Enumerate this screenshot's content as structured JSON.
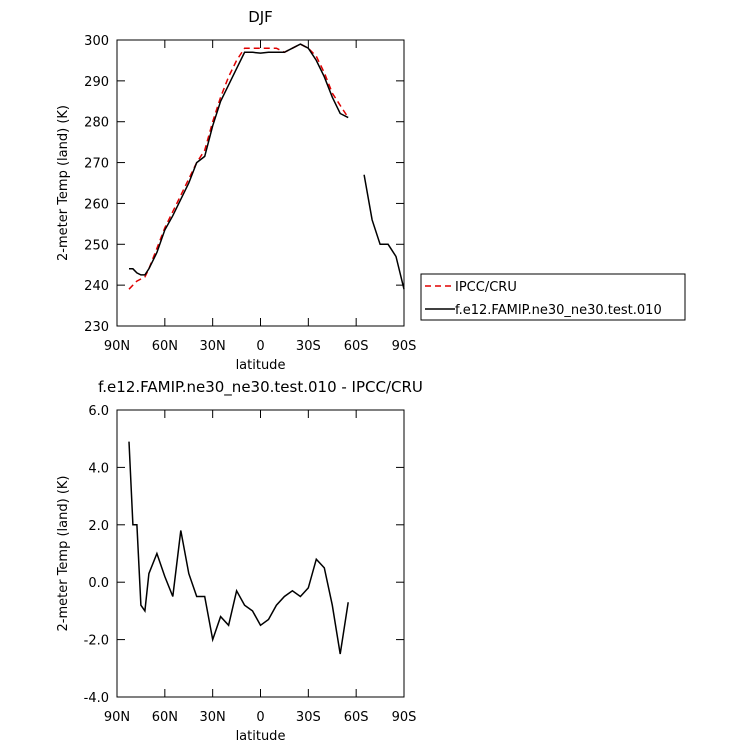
{
  "chart_data": [
    {
      "type": "line",
      "title": "DJF",
      "xlabel": "latitude",
      "ylabel": "2-meter Temp (land) (K)",
      "x": [
        82.5,
        80,
        77.5,
        75,
        72.5,
        70,
        65,
        60,
        55,
        50,
        45,
        40,
        35,
        30,
        25,
        20,
        15,
        10,
        5,
        0,
        -5,
        -10,
        -15,
        -20,
        -25,
        -30,
        -35,
        -40,
        -45,
        -50,
        -55,
        -60,
        -65,
        -70,
        -75,
        -80,
        -85,
        -90
      ],
      "series": [
        {
          "name": "IPCC/CRU",
          "color": "#e00000",
          "linestyle": "dashed",
          "values": [
            239,
            240,
            241,
            241.5,
            242,
            244,
            249,
            254,
            258,
            262,
            266,
            270,
            273,
            280,
            286,
            291,
            295,
            298,
            298,
            298,
            298,
            298,
            297,
            298,
            299,
            298,
            296,
            292,
            287,
            284,
            281,
            null,
            null,
            null,
            null,
            null,
            null,
            null
          ]
        },
        {
          "name": "f.e12.FAMIP.ne30_ne30.test.010",
          "color": "#000000",
          "linestyle": "solid",
          "values": [
            244,
            244,
            243,
            242.5,
            242.5,
            244,
            248,
            253.5,
            257,
            261,
            265,
            270,
            271.5,
            279,
            285,
            289,
            293,
            297,
            297,
            296.8,
            297,
            297,
            297,
            298,
            299,
            298,
            295,
            291,
            286,
            282,
            281,
            null,
            267,
            256,
            250,
            250,
            247,
            239
          ]
        }
      ],
      "xlim": [
        90,
        -90
      ],
      "xticks": [
        {
          "value": 90,
          "label": "90N"
        },
        {
          "value": 60,
          "label": "60N"
        },
        {
          "value": 30,
          "label": "30N"
        },
        0,
        {
          "value": -30,
          "label": "30S"
        },
        {
          "value": -60,
          "label": "60S"
        },
        {
          "value": -90,
          "label": "90S"
        }
      ],
      "ylim": [
        230,
        300
      ],
      "yticks": [
        230,
        240,
        250,
        260,
        270,
        280,
        290,
        300
      ],
      "legend": "right"
    },
    {
      "type": "line",
      "title": "f.e12.FAMIP.ne30_ne30.test.010 - IPCC/CRU",
      "xlabel": "latitude",
      "ylabel": "2-meter Temp (land) (K)",
      "x": [
        82.5,
        80,
        77.5,
        75,
        72.5,
        70,
        65,
        60,
        55,
        50,
        45,
        40,
        35,
        30,
        25,
        20,
        15,
        10,
        5,
        0,
        -5,
        -10,
        -15,
        -20,
        -25,
        -30,
        -35,
        -40,
        -45,
        -50,
        -55
      ],
      "series": [
        {
          "color": "#000000",
          "linestyle": "solid",
          "values": [
            4.9,
            2.0,
            2.0,
            -0.8,
            -1.0,
            0.3,
            1.0,
            0.2,
            -0.5,
            1.8,
            0.3,
            -0.5,
            -0.5,
            -2.0,
            -1.2,
            -1.5,
            -0.3,
            -0.8,
            -1.0,
            -1.5,
            -1.3,
            -0.8,
            -0.5,
            -0.3,
            -0.5,
            -0.2,
            0.8,
            0.5,
            -0.8,
            -2.5,
            -0.7
          ]
        }
      ],
      "xlim": [
        90,
        -90
      ],
      "xticks": [
        {
          "value": 90,
          "label": "90N"
        },
        {
          "value": 60,
          "label": "60N"
        },
        {
          "value": 30,
          "label": "30N"
        },
        0,
        {
          "value": -30,
          "label": "30S"
        },
        {
          "value": -60,
          "label": "60S"
        },
        {
          "value": -90,
          "label": "90S"
        }
      ],
      "ylim": [
        -4,
        6
      ],
      "yticks": [
        {
          "value": -4,
          "label": "-4.0"
        },
        {
          "value": -2,
          "label": "-2.0"
        },
        {
          "value": 0,
          "label": "0.0"
        },
        {
          "value": 2,
          "label": "2.0"
        },
        {
          "value": 4,
          "label": "4.0"
        },
        {
          "value": 6,
          "label": "6.0"
        }
      ]
    }
  ]
}
